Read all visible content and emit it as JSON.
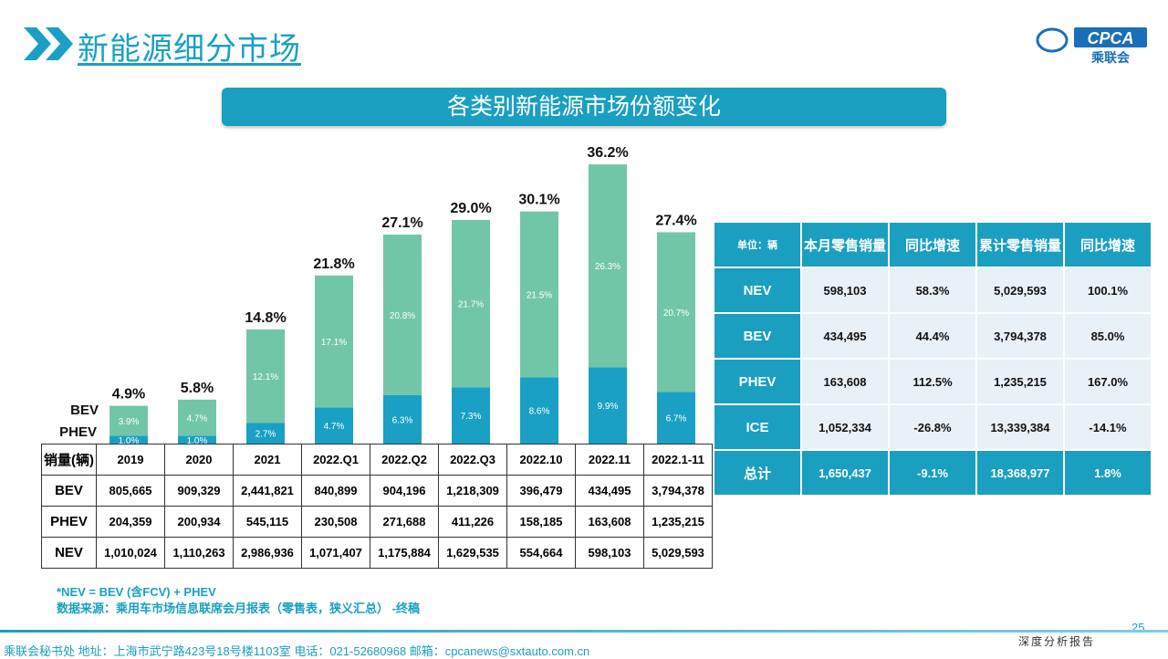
{
  "header": {
    "title": "新能源细分市场",
    "logo_text": "CPCA",
    "logo_sub": "乘联会",
    "banner": "各类别新能源市场份额变化"
  },
  "chart_data": {
    "type": "bar",
    "stacked": true,
    "categories": [
      "2019",
      "2020",
      "2021",
      "2022.Q1",
      "2022.Q2",
      "2022.Q3",
      "2022.10",
      "2022.11",
      "2022.1-11"
    ],
    "series": [
      {
        "name": "PHEV",
        "values": [
          1.0,
          1.0,
          2.7,
          4.7,
          6.3,
          7.3,
          8.6,
          9.9,
          6.7
        ],
        "labels": [
          "1.0%",
          "1.0%",
          "2.7%",
          "4.7%",
          "6.3%",
          "7.3%",
          "8.6%",
          "9.9%",
          "6.7%"
        ],
        "color": "#1aa0c4"
      },
      {
        "name": "BEV",
        "values": [
          3.9,
          4.7,
          12.1,
          17.1,
          20.8,
          21.7,
          21.5,
          26.3,
          20.7
        ],
        "labels": [
          "3.9%",
          "4.7%",
          "12.1%",
          "17.1%",
          "20.8%",
          "21.7%",
          "21.5%",
          "26.3%",
          "20.7%"
        ],
        "color": "#72c6a8"
      }
    ],
    "totals": [
      "4.9%",
      "5.8%",
      "14.8%",
      "21.8%",
      "27.1%",
      "29.0%",
      "30.1%",
      "36.2%",
      "27.4%"
    ],
    "total_values": [
      4.9,
      5.8,
      14.8,
      21.8,
      27.1,
      29.0,
      30.1,
      36.2,
      27.4
    ],
    "unit": "%"
  },
  "volume_table": {
    "header": [
      "销量(辆)",
      "2019",
      "2020",
      "2021",
      "2022.Q1",
      "2022.Q2",
      "2022.Q3",
      "2022.10",
      "2022.11",
      "2022.1-11"
    ],
    "rows": [
      [
        "BEV",
        "805,665",
        "909,329",
        "2,441,821",
        "840,899",
        "904,196",
        "1,218,309",
        "396,479",
        "434,495",
        "3,794,378"
      ],
      [
        "PHEV",
        "204,359",
        "200,934",
        "545,115",
        "230,508",
        "271,688",
        "411,226",
        "158,185",
        "163,608",
        "1,235,215"
      ],
      [
        "NEV",
        "1,010,024",
        "1,110,263",
        "2,986,936",
        "1,071,407",
        "1,175,884",
        "1,629,535",
        "554,664",
        "598,103",
        "5,029,593"
      ]
    ]
  },
  "sales_table": {
    "header": [
      "单位：辆",
      "本月零售销量",
      "同比增速",
      "累计零售销量",
      "同比增速"
    ],
    "rows": [
      [
        "NEV",
        "598,103",
        "58.3%",
        "5,029,593",
        "100.1%"
      ],
      [
        "BEV",
        "434,495",
        "44.4%",
        "3,794,378",
        "85.0%"
      ],
      [
        "PHEV",
        "163,608",
        "112.5%",
        "1,235,215",
        "167.0%"
      ],
      [
        "ICE",
        "1,052,334",
        "-26.8%",
        "13,339,384",
        "-14.1%"
      ]
    ],
    "total": [
      "总计",
      "1,650,437",
      "-9.1%",
      "18,368,977",
      "1.8%"
    ]
  },
  "notes": {
    "line1": "*NEV = BEV (含FCV) + PHEV",
    "line2": "数据来源：乘用车市场信息联席会月报表（零售表，狭义汇总） -终稿"
  },
  "footer": {
    "page": "25",
    "slogan": "深度分析报告",
    "address": "乘联会秘书处   地址：上海市武宁路423号18号楼1103室  电话：021-52680968   邮箱：cpcanews@sxtauto.com.cn"
  }
}
